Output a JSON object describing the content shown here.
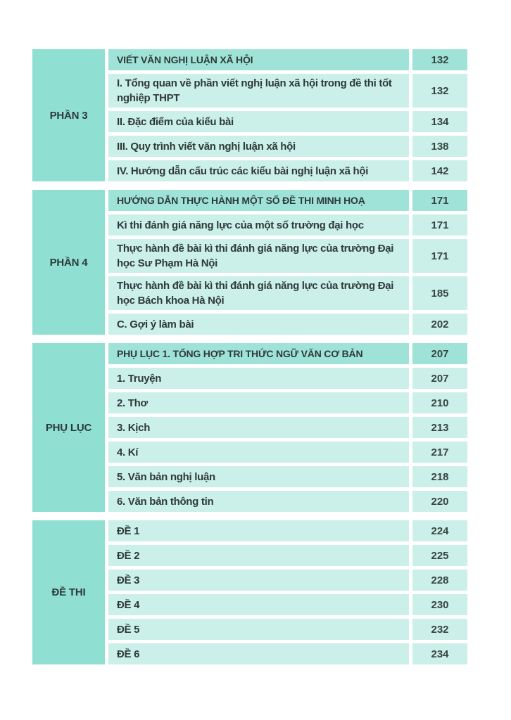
{
  "colors": {
    "body_cell": "#cbefe9",
    "header_cell": "#9fe3d8",
    "label_cell": "#8fdfd3",
    "text": "#2e3a38",
    "page_num_text": "#374442",
    "page_bg": "#ffffff"
  },
  "toc": {
    "sections": [
      {
        "label": "PHẦN 3",
        "rows": [
          {
            "title": "VIẾT VĂN NGHỊ LUẬN XÃ HỘI",
            "page": "132"
          },
          {
            "title": "I. Tổng quan về phần viết nghị luận xã hội trong đề thi tốt nghiệp THPT",
            "page": "132"
          },
          {
            "title": "II. Đặc điểm của kiểu bài",
            "page": "134"
          },
          {
            "title": "III. Quy trình viết văn nghị luận xã hội",
            "page": "138"
          },
          {
            "title": "IV. Hướng dẫn cấu trúc các kiểu bài nghị luận xã hội",
            "page": "142"
          }
        ]
      },
      {
        "label": "PHẦN 4",
        "rows": [
          {
            "title": "HƯỚNG DẪN THỰC HÀNH MỘT SỐ ĐỀ THI MINH HOẠ",
            "page": "171"
          },
          {
            "title": "Kì thi đánh giá năng lực của một số trường đại học",
            "page": "171"
          },
          {
            "title": "Thực hành đề bài kì thi đánh giá năng lực của trường Đại học Sư Phạm Hà Nội",
            "page": "171"
          },
          {
            "title": "Thực hành đề bài kì thi đánh giá năng lực của trường Đại học Bách khoa Hà Nội",
            "page": "185"
          },
          {
            "title": "C. Gợi ý làm bài",
            "page": "202"
          }
        ]
      },
      {
        "label": "PHỤ LỤC",
        "rows": [
          {
            "title": "PHỤ LỤC 1. TỔNG HỢP TRI THỨC NGỮ VĂN CƠ BẢN",
            "page": "207"
          },
          {
            "title": "1. Truyện",
            "page": "207"
          },
          {
            "title": "2. Thơ",
            "page": "210"
          },
          {
            "title": "3. Kịch",
            "page": "213"
          },
          {
            "title": "4. Kí",
            "page": "217"
          },
          {
            "title": "5. Văn bản nghị luận",
            "page": "218"
          },
          {
            "title": "6. Văn bản thông tin",
            "page": "220"
          }
        ]
      },
      {
        "label": "ĐỀ THI",
        "rows": [
          {
            "title": "ĐỀ 1",
            "page": "224"
          },
          {
            "title": "ĐỀ 2",
            "page": "225"
          },
          {
            "title": "ĐỀ 3",
            "page": "228"
          },
          {
            "title": "ĐỀ 4",
            "page": "230"
          },
          {
            "title": "ĐỀ 5",
            "page": "232"
          },
          {
            "title": "ĐỀ 6",
            "page": "234"
          }
        ]
      }
    ]
  }
}
